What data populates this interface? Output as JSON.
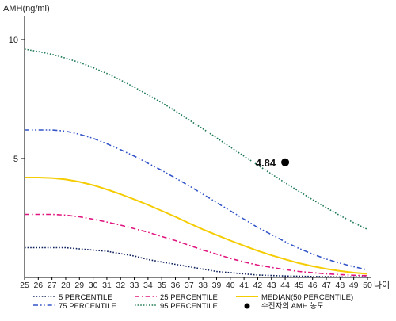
{
  "chart_data": {
    "type": "line",
    "title": "",
    "ylabel": "AMH(ng/ml)",
    "xlabel": "나이",
    "xlim": [
      25,
      50
    ],
    "ylim": [
      0,
      11
    ],
    "x_ticks": [
      25,
      26,
      27,
      28,
      29,
      30,
      31,
      32,
      33,
      34,
      35,
      36,
      37,
      38,
      39,
      40,
      41,
      42,
      43,
      44,
      45,
      46,
      47,
      48,
      49,
      50
    ],
    "y_ticks": [
      5,
      10
    ],
    "grid": false,
    "legend_position": "bottom",
    "series": [
      {
        "name": "5 PERCENTILE",
        "color": "#0b1f5c",
        "style": "dotted",
        "x": [
          25,
          26,
          27,
          28,
          29,
          30,
          31,
          32,
          33,
          34,
          35,
          36,
          37,
          38,
          39,
          40,
          41,
          42,
          43,
          44,
          45,
          46,
          47,
          48,
          49,
          50
        ],
        "values": [
          1.25,
          1.25,
          1.25,
          1.25,
          1.2,
          1.15,
          1.1,
          1.0,
          0.9,
          0.75,
          0.65,
          0.55,
          0.45,
          0.35,
          0.25,
          0.2,
          0.15,
          0.1,
          0.08,
          0.06,
          0.05,
          0.04,
          0.03,
          0.02,
          0.02,
          0.02
        ]
      },
      {
        "name": "25 PERCENTILE",
        "color": "#e0157f",
        "style": "dashdot",
        "x": [
          25,
          26,
          27,
          28,
          29,
          30,
          31,
          32,
          33,
          34,
          35,
          36,
          37,
          38,
          39,
          40,
          41,
          42,
          43,
          44,
          45,
          46,
          47,
          48,
          49,
          50
        ],
        "values": [
          2.65,
          2.65,
          2.65,
          2.62,
          2.55,
          2.45,
          2.33,
          2.2,
          2.05,
          1.9,
          1.72,
          1.55,
          1.35,
          1.15,
          0.98,
          0.8,
          0.65,
          0.52,
          0.42,
          0.33,
          0.25,
          0.2,
          0.15,
          0.12,
          0.09,
          0.07
        ]
      },
      {
        "name": "MEDIAN(50 PERCENTILE)",
        "color": "#f5cc00",
        "style": "solid",
        "x": [
          25,
          26,
          27,
          28,
          29,
          30,
          31,
          32,
          33,
          34,
          35,
          36,
          37,
          38,
          39,
          40,
          41,
          42,
          43,
          44,
          45,
          46,
          47,
          48,
          49,
          50
        ],
        "values": [
          4.2,
          4.2,
          4.18,
          4.12,
          4.02,
          3.88,
          3.7,
          3.5,
          3.28,
          3.05,
          2.8,
          2.55,
          2.28,
          2.02,
          1.78,
          1.55,
          1.33,
          1.12,
          0.93,
          0.76,
          0.6,
          0.47,
          0.36,
          0.27,
          0.2,
          0.15
        ]
      },
      {
        "name": "75 PERCENTILE",
        "color": "#3355c8",
        "style": "dashdotdot",
        "x": [
          25,
          26,
          27,
          28,
          29,
          30,
          31,
          32,
          33,
          34,
          35,
          36,
          37,
          38,
          39,
          40,
          41,
          42,
          43,
          44,
          45,
          46,
          47,
          48,
          49,
          50
        ],
        "values": [
          6.2,
          6.2,
          6.2,
          6.15,
          6.02,
          5.85,
          5.62,
          5.37,
          5.1,
          4.8,
          4.5,
          4.18,
          3.85,
          3.5,
          3.15,
          2.8,
          2.45,
          2.1,
          1.8,
          1.5,
          1.22,
          0.98,
          0.77,
          0.6,
          0.45,
          0.32
        ]
      },
      {
        "name": "95 PERCENTILE",
        "color": "#1f7a55",
        "style": "dotted",
        "x": [
          25,
          26,
          27,
          28,
          29,
          30,
          31,
          32,
          33,
          34,
          35,
          36,
          37,
          38,
          39,
          40,
          41,
          42,
          43,
          44,
          45,
          46,
          47,
          48,
          49,
          50
        ],
        "values": [
          9.6,
          9.5,
          9.38,
          9.22,
          9.04,
          8.82,
          8.58,
          8.3,
          8.0,
          7.68,
          7.35,
          7.0,
          6.62,
          6.25,
          5.87,
          5.48,
          5.1,
          4.72,
          4.35,
          3.98,
          3.62,
          3.27,
          2.93,
          2.6,
          2.3,
          2.02
        ]
      }
    ],
    "points": [
      {
        "name": "수진자의 AMH 농도",
        "x": 44,
        "y": 4.84,
        "label": "4.84",
        "color": "#000000"
      }
    ]
  }
}
